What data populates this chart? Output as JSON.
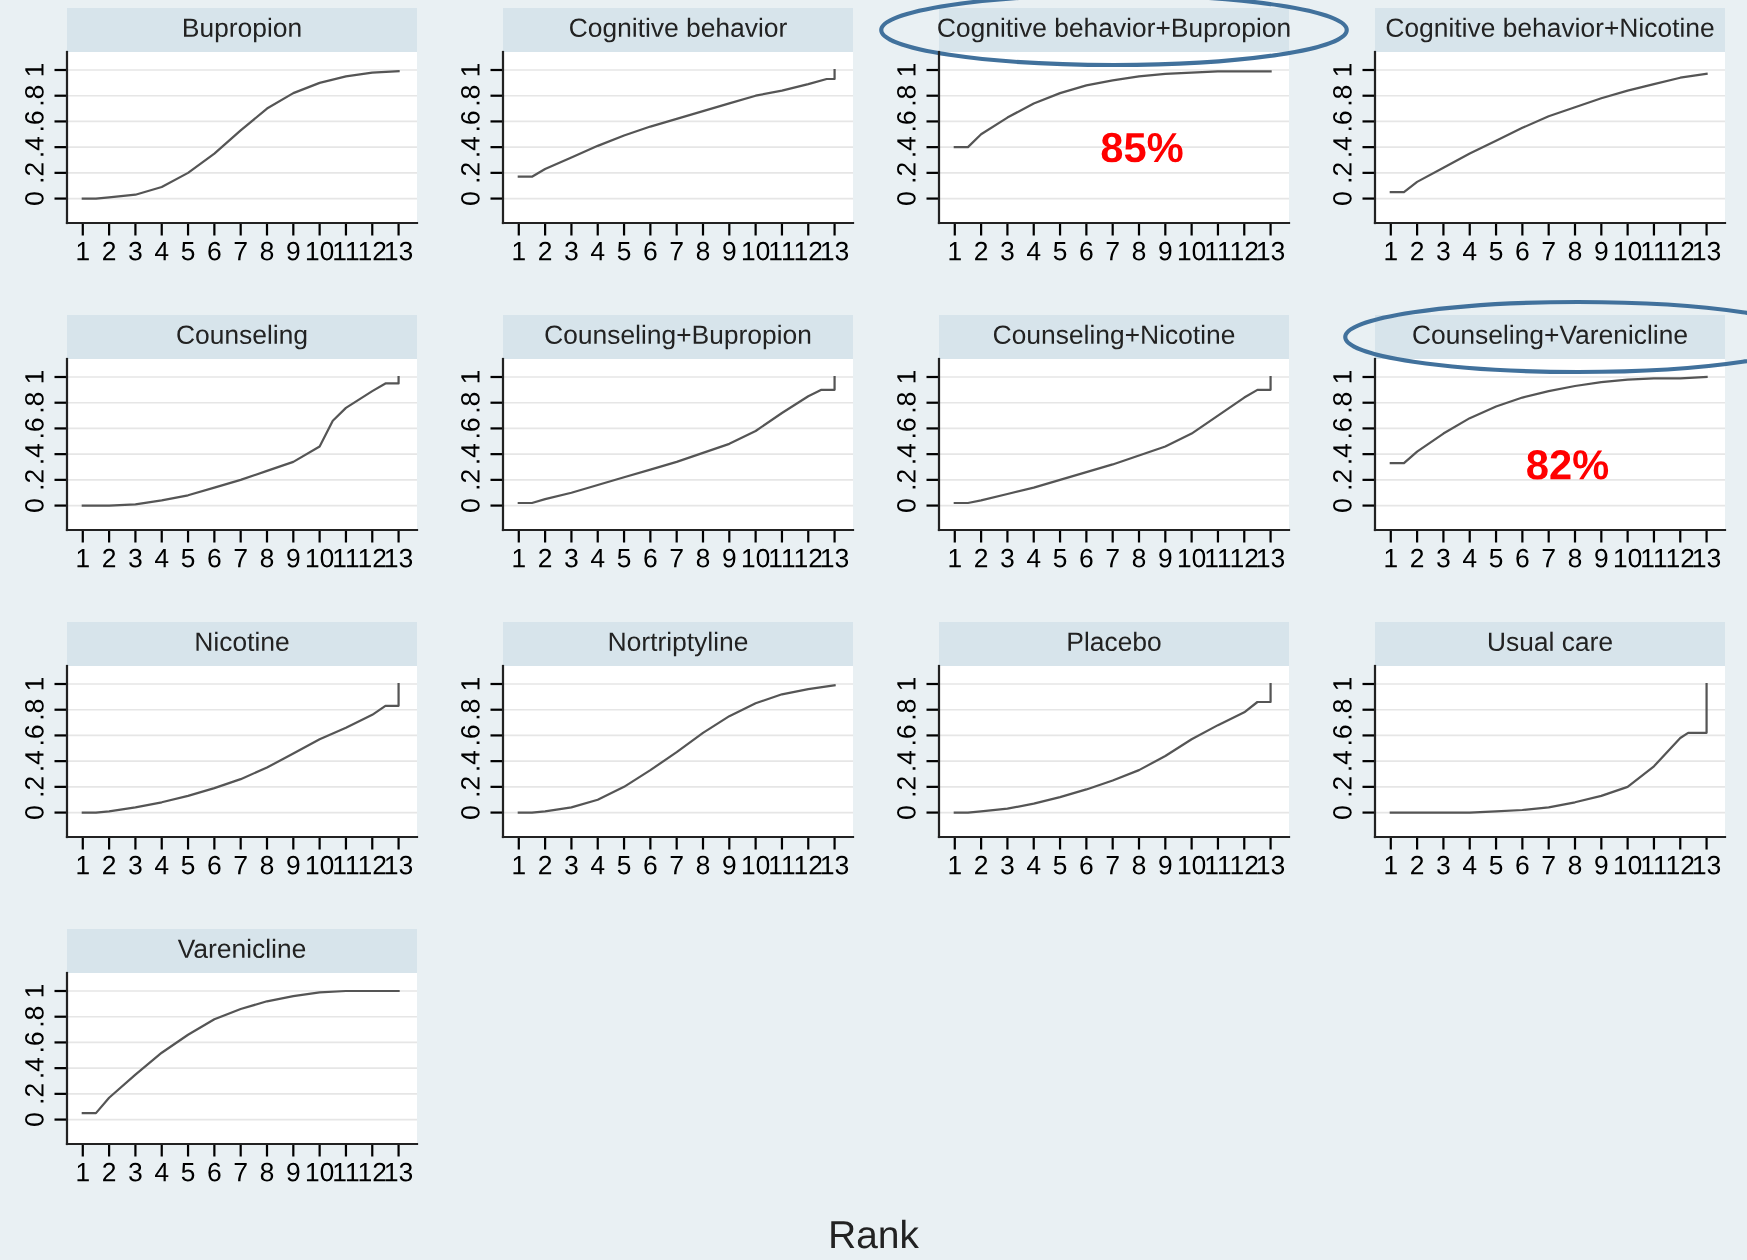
{
  "chart_data": [
    {
      "type": "line",
      "title": "Bupropion",
      "x": [
        1,
        1.5,
        2,
        3,
        4,
        5,
        6,
        7,
        8,
        9,
        10,
        11,
        12,
        13
      ],
      "series": [
        {
          "color": "#555555",
          "values": [
            0,
            0,
            0.01,
            0.03,
            0.09,
            0.2,
            0.35,
            0.53,
            0.7,
            0.82,
            0.9,
            0.95,
            0.98,
            0.99
          ]
        }
      ],
      "xlim": [
        0.4,
        13.7
      ],
      "ylim": [
        -0.19,
        1.14
      ],
      "xticks": [
        1,
        2,
        3,
        4,
        5,
        6,
        7,
        8,
        9,
        10,
        11,
        12,
        13
      ],
      "yticks": [
        {
          "value": 0,
          "label": "0"
        },
        {
          "value": 0.2,
          "label": ".2"
        },
        {
          "value": 0.4,
          "label": ".4"
        },
        {
          "value": 0.6,
          "label": ".6"
        },
        {
          "value": 0.8,
          "label": ".8"
        },
        {
          "value": 1,
          "label": "1"
        }
      ],
      "grid": "y"
    },
    {
      "type": "line",
      "title": "Cognitive behavior",
      "x": [
        1,
        1.5,
        2,
        3,
        4,
        5,
        6,
        7,
        8,
        9,
        10,
        11,
        12,
        12.7,
        13,
        13
      ],
      "series": [
        {
          "color": "#555555",
          "values": [
            0.17,
            0.17,
            0.23,
            0.32,
            0.41,
            0.49,
            0.56,
            0.62,
            0.68,
            0.74,
            0.8,
            0.84,
            0.89,
            0.93,
            0.93,
            1
          ]
        }
      ],
      "xlim": [
        0.4,
        13.7
      ],
      "ylim": [
        -0.19,
        1.14
      ],
      "xticks": [
        1,
        2,
        3,
        4,
        5,
        6,
        7,
        8,
        9,
        10,
        11,
        12,
        13
      ],
      "yticks": [
        {
          "value": 0,
          "label": "0"
        },
        {
          "value": 0.2,
          "label": ".2"
        },
        {
          "value": 0.4,
          "label": ".4"
        },
        {
          "value": 0.6,
          "label": ".6"
        },
        {
          "value": 0.8,
          "label": ".8"
        },
        {
          "value": 1,
          "label": "1"
        }
      ],
      "grid": "y"
    },
    {
      "type": "line",
      "title": "Cognitive behavior+Bupropion",
      "x": [
        1,
        1.5,
        2,
        3,
        4,
        5,
        6,
        7,
        8,
        9,
        10,
        11,
        12,
        13
      ],
      "series": [
        {
          "color": "#555555",
          "values": [
            0.4,
            0.4,
            0.5,
            0.63,
            0.74,
            0.82,
            0.88,
            0.92,
            0.95,
            0.97,
            0.98,
            0.99,
            0.99,
            0.99
          ]
        }
      ],
      "xlim": [
        0.4,
        13.7
      ],
      "ylim": [
        -0.19,
        1.14
      ],
      "xticks": [
        1,
        2,
        3,
        4,
        5,
        6,
        7,
        8,
        9,
        10,
        11,
        12,
        13
      ],
      "yticks": [
        {
          "value": 0,
          "label": "0"
        },
        {
          "value": 0.2,
          "label": ".2"
        },
        {
          "value": 0.4,
          "label": ".4"
        },
        {
          "value": 0.6,
          "label": ".6"
        },
        {
          "value": 0.8,
          "label": ".8"
        },
        {
          "value": 1,
          "label": "1"
        }
      ],
      "grid": "y",
      "annotations": [
        "85%"
      ]
    },
    {
      "type": "line",
      "title": "Cognitive behavior+Nicotine",
      "x": [
        1,
        1.5,
        2,
        3,
        4,
        5,
        6,
        7,
        8,
        9,
        10,
        11,
        12,
        13
      ],
      "series": [
        {
          "color": "#555555",
          "values": [
            0.05,
            0.05,
            0.13,
            0.24,
            0.35,
            0.45,
            0.55,
            0.64,
            0.71,
            0.78,
            0.84,
            0.89,
            0.94,
            0.97
          ]
        }
      ],
      "xlim": [
        0.4,
        13.7
      ],
      "ylim": [
        -0.19,
        1.14
      ],
      "xticks": [
        1,
        2,
        3,
        4,
        5,
        6,
        7,
        8,
        9,
        10,
        11,
        12,
        13
      ],
      "yticks": [
        {
          "value": 0,
          "label": "0"
        },
        {
          "value": 0.2,
          "label": ".2"
        },
        {
          "value": 0.4,
          "label": ".4"
        },
        {
          "value": 0.6,
          "label": ".6"
        },
        {
          "value": 0.8,
          "label": ".8"
        },
        {
          "value": 1,
          "label": "1"
        }
      ],
      "grid": "y"
    },
    {
      "type": "line",
      "title": "Counseling",
      "x": [
        1,
        1.5,
        2,
        3,
        4,
        5,
        6,
        7,
        8,
        9,
        10,
        10.5,
        11,
        12,
        12.5,
        13,
        13
      ],
      "series": [
        {
          "color": "#555555",
          "values": [
            0,
            0,
            0,
            0.01,
            0.04,
            0.08,
            0.14,
            0.2,
            0.27,
            0.34,
            0.46,
            0.66,
            0.76,
            0.89,
            0.95,
            0.95,
            1
          ]
        }
      ],
      "xlim": [
        0.4,
        13.7
      ],
      "ylim": [
        -0.19,
        1.14
      ],
      "xticks": [
        1,
        2,
        3,
        4,
        5,
        6,
        7,
        8,
        9,
        10,
        11,
        12,
        13
      ],
      "yticks": [
        {
          "value": 0,
          "label": "0"
        },
        {
          "value": 0.2,
          "label": ".2"
        },
        {
          "value": 0.4,
          "label": ".4"
        },
        {
          "value": 0.6,
          "label": ".6"
        },
        {
          "value": 0.8,
          "label": ".8"
        },
        {
          "value": 1,
          "label": "1"
        }
      ],
      "grid": "y"
    },
    {
      "type": "line",
      "title": "Counseling+Bupropion",
      "x": [
        1,
        1.5,
        2,
        3,
        4,
        5,
        6,
        7,
        8,
        9,
        10,
        11,
        12,
        12.5,
        13,
        13
      ],
      "series": [
        {
          "color": "#555555",
          "values": [
            0.02,
            0.02,
            0.05,
            0.1,
            0.16,
            0.22,
            0.28,
            0.34,
            0.41,
            0.48,
            0.58,
            0.72,
            0.85,
            0.9,
            0.9,
            1
          ]
        }
      ],
      "xlim": [
        0.4,
        13.7
      ],
      "ylim": [
        -0.19,
        1.14
      ],
      "xticks": [
        1,
        2,
        3,
        4,
        5,
        6,
        7,
        8,
        9,
        10,
        11,
        12,
        13
      ],
      "yticks": [
        {
          "value": 0,
          "label": "0"
        },
        {
          "value": 0.2,
          "label": ".2"
        },
        {
          "value": 0.4,
          "label": ".4"
        },
        {
          "value": 0.6,
          "label": ".6"
        },
        {
          "value": 0.8,
          "label": ".8"
        },
        {
          "value": 1,
          "label": "1"
        }
      ],
      "grid": "y"
    },
    {
      "type": "line",
      "title": "Counseling+Nicotine",
      "x": [
        1,
        1.5,
        2,
        3,
        4,
        5,
        6,
        7,
        8,
        9,
        10,
        11,
        12,
        12.5,
        13,
        13
      ],
      "series": [
        {
          "color": "#555555",
          "values": [
            0.02,
            0.02,
            0.04,
            0.09,
            0.14,
            0.2,
            0.26,
            0.32,
            0.39,
            0.46,
            0.56,
            0.7,
            0.84,
            0.9,
            0.9,
            1
          ]
        }
      ],
      "xlim": [
        0.4,
        13.7
      ],
      "ylim": [
        -0.19,
        1.14
      ],
      "xticks": [
        1,
        2,
        3,
        4,
        5,
        6,
        7,
        8,
        9,
        10,
        11,
        12,
        13
      ],
      "yticks": [
        {
          "value": 0,
          "label": "0"
        },
        {
          "value": 0.2,
          "label": ".2"
        },
        {
          "value": 0.4,
          "label": ".4"
        },
        {
          "value": 0.6,
          "label": ".6"
        },
        {
          "value": 0.8,
          "label": ".8"
        },
        {
          "value": 1,
          "label": "1"
        }
      ],
      "grid": "y"
    },
    {
      "type": "line",
      "title": "Counseling+Varenicline",
      "x": [
        1,
        1.5,
        2,
        3,
        4,
        5,
        6,
        7,
        8,
        9,
        10,
        11,
        12,
        13
      ],
      "series": [
        {
          "color": "#555555",
          "values": [
            0.33,
            0.33,
            0.42,
            0.56,
            0.68,
            0.77,
            0.84,
            0.89,
            0.93,
            0.96,
            0.98,
            0.99,
            0.99,
            1
          ]
        }
      ],
      "xlim": [
        0.4,
        13.7
      ],
      "ylim": [
        -0.19,
        1.14
      ],
      "xticks": [
        1,
        2,
        3,
        4,
        5,
        6,
        7,
        8,
        9,
        10,
        11,
        12,
        13
      ],
      "yticks": [
        {
          "value": 0,
          "label": "0"
        },
        {
          "value": 0.2,
          "label": ".2"
        },
        {
          "value": 0.4,
          "label": ".4"
        },
        {
          "value": 0.6,
          "label": ".6"
        },
        {
          "value": 0.8,
          "label": ".8"
        },
        {
          "value": 1,
          "label": "1"
        }
      ],
      "grid": "y",
      "annotations": [
        "82%"
      ]
    },
    {
      "type": "line",
      "title": "Nicotine",
      "x": [
        1,
        1.5,
        2,
        3,
        4,
        5,
        6,
        7,
        8,
        9,
        10,
        11,
        12,
        12.5,
        13,
        13
      ],
      "series": [
        {
          "color": "#555555",
          "values": [
            0,
            0,
            0.01,
            0.04,
            0.08,
            0.13,
            0.19,
            0.26,
            0.35,
            0.46,
            0.57,
            0.66,
            0.76,
            0.83,
            0.83,
            1
          ]
        }
      ],
      "xlim": [
        0.4,
        13.7
      ],
      "ylim": [
        -0.19,
        1.14
      ],
      "xticks": [
        1,
        2,
        3,
        4,
        5,
        6,
        7,
        8,
        9,
        10,
        11,
        12,
        13
      ],
      "yticks": [
        {
          "value": 0,
          "label": "0"
        },
        {
          "value": 0.2,
          "label": ".2"
        },
        {
          "value": 0.4,
          "label": ".4"
        },
        {
          "value": 0.6,
          "label": ".6"
        },
        {
          "value": 0.8,
          "label": ".8"
        },
        {
          "value": 1,
          "label": "1"
        }
      ],
      "grid": "y"
    },
    {
      "type": "line",
      "title": "Nortriptyline",
      "x": [
        1,
        1.5,
        2,
        3,
        4,
        5,
        6,
        7,
        8,
        9,
        10,
        11,
        12,
        13
      ],
      "series": [
        {
          "color": "#555555",
          "values": [
            0,
            0,
            0.01,
            0.04,
            0.1,
            0.2,
            0.33,
            0.47,
            0.62,
            0.75,
            0.85,
            0.92,
            0.96,
            0.99
          ]
        }
      ],
      "xlim": [
        0.4,
        13.7
      ],
      "ylim": [
        -0.19,
        1.14
      ],
      "xticks": [
        1,
        2,
        3,
        4,
        5,
        6,
        7,
        8,
        9,
        10,
        11,
        12,
        13
      ],
      "yticks": [
        {
          "value": 0,
          "label": "0"
        },
        {
          "value": 0.2,
          "label": ".2"
        },
        {
          "value": 0.4,
          "label": ".4"
        },
        {
          "value": 0.6,
          "label": ".6"
        },
        {
          "value": 0.8,
          "label": ".8"
        },
        {
          "value": 1,
          "label": "1"
        }
      ],
      "grid": "y"
    },
    {
      "type": "line",
      "title": "Placebo",
      "x": [
        1,
        1.5,
        2,
        3,
        4,
        5,
        6,
        7,
        8,
        9,
        10,
        11,
        12,
        12.5,
        13,
        13
      ],
      "series": [
        {
          "color": "#555555",
          "values": [
            0,
            0,
            0.01,
            0.03,
            0.07,
            0.12,
            0.18,
            0.25,
            0.33,
            0.44,
            0.57,
            0.68,
            0.78,
            0.86,
            0.86,
            1
          ]
        }
      ],
      "xlim": [
        0.4,
        13.7
      ],
      "ylim": [
        -0.19,
        1.14
      ],
      "xticks": [
        1,
        2,
        3,
        4,
        5,
        6,
        7,
        8,
        9,
        10,
        11,
        12,
        13
      ],
      "yticks": [
        {
          "value": 0,
          "label": "0"
        },
        {
          "value": 0.2,
          "label": ".2"
        },
        {
          "value": 0.4,
          "label": ".4"
        },
        {
          "value": 0.6,
          "label": ".6"
        },
        {
          "value": 0.8,
          "label": ".8"
        },
        {
          "value": 1,
          "label": "1"
        }
      ],
      "grid": "y"
    },
    {
      "type": "line",
      "title": "Usual care",
      "x": [
        1,
        1.5,
        2,
        3,
        4,
        5,
        6,
        7,
        8,
        9,
        10,
        11,
        12,
        12.3,
        13,
        13
      ],
      "series": [
        {
          "color": "#555555",
          "values": [
            0,
            0,
            0,
            0,
            0,
            0.01,
            0.02,
            0.04,
            0.08,
            0.13,
            0.2,
            0.36,
            0.58,
            0.62,
            0.62,
            1
          ]
        }
      ],
      "xlim": [
        0.4,
        13.7
      ],
      "ylim": [
        -0.19,
        1.14
      ],
      "xticks": [
        1,
        2,
        3,
        4,
        5,
        6,
        7,
        8,
        9,
        10,
        11,
        12,
        13
      ],
      "yticks": [
        {
          "value": 0,
          "label": "0"
        },
        {
          "value": 0.2,
          "label": ".2"
        },
        {
          "value": 0.4,
          "label": ".4"
        },
        {
          "value": 0.6,
          "label": ".6"
        },
        {
          "value": 0.8,
          "label": ".8"
        },
        {
          "value": 1,
          "label": "1"
        }
      ],
      "grid": "y"
    },
    {
      "type": "line",
      "title": "Varenicline",
      "annotations": [
        "Rank"
      ],
      "x": [
        1,
        1.5,
        2,
        3,
        4,
        5,
        6,
        7,
        8,
        9,
        10,
        11,
        12,
        13
      ],
      "series": [
        {
          "color": "#555555",
          "values": [
            0.05,
            0.05,
            0.17,
            0.35,
            0.52,
            0.66,
            0.78,
            0.86,
            0.92,
            0.96,
            0.99,
            1,
            1,
            1
          ]
        }
      ],
      "xlim": [
        0.4,
        13.7
      ],
      "ylim": [
        -0.19,
        1.14
      ],
      "xticks": [
        1,
        2,
        3,
        4,
        5,
        6,
        7,
        8,
        9,
        10,
        11,
        12,
        13
      ],
      "yticks": [
        {
          "value": 0,
          "label": "0"
        },
        {
          "value": 0.2,
          "label": ".2"
        },
        {
          "value": 0.4,
          "label": ".4"
        },
        {
          "value": 0.6,
          "label": ".6"
        },
        {
          "value": 0.8,
          "label": ".8"
        },
        {
          "value": 1,
          "label": "1"
        }
      ],
      "grid": "y"
    }
  ]
}
